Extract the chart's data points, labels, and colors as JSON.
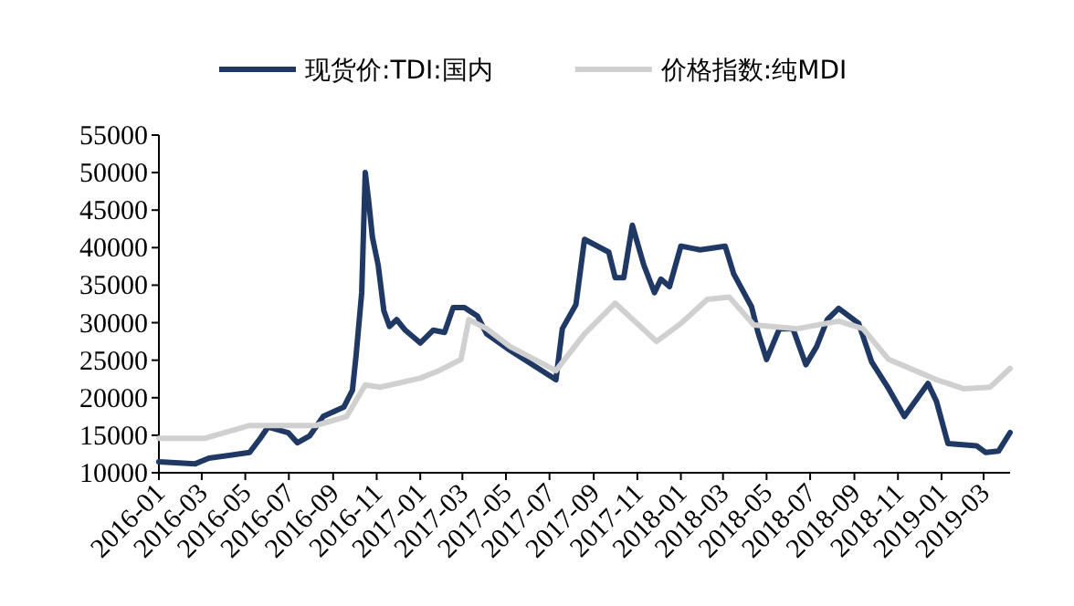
{
  "chart_data": {
    "type": "line",
    "legend": "top",
    "grid": false,
    "marker": "none",
    "line_style": "solid",
    "xlim": [
      "2016-01-01",
      "2019-04-07"
    ],
    "xticks": [
      "2016-01",
      "2016-03",
      "2016-05",
      "2016-07",
      "2016-09",
      "2016-11",
      "2017-01",
      "2017-03",
      "2017-05",
      "2017-07",
      "2017-09",
      "2017-11",
      "2018-01",
      "2018-03",
      "2018-05",
      "2018-07",
      "2018-09",
      "2018-11",
      "2019-01",
      "2019-03"
    ],
    "ylim": [
      10000,
      55000
    ],
    "yticks": [
      10000,
      15000,
      20000,
      25000,
      30000,
      35000,
      40000,
      45000,
      50000,
      55000
    ],
    "series": [
      {
        "name": "现货价:TDI:国内",
        "color": "#1f3864",
        "x": [
          "2016-01-01",
          "2016-02-21",
          "2016-03-11",
          "2016-05-07",
          "2016-05-22",
          "2016-06-02",
          "2016-06-30",
          "2016-07-13",
          "2016-07-30",
          "2016-08-18",
          "2016-09-16",
          "2016-09-28",
          "2016-10-03",
          "2016-10-11",
          "2016-10-16",
          "2016-10-21",
          "2016-10-26",
          "2016-11-03",
          "2016-11-11",
          "2016-11-19",
          "2016-11-29",
          "2016-12-11",
          "2017-01-01",
          "2017-01-19",
          "2017-02-04",
          "2017-02-16",
          "2017-03-04",
          "2017-03-22",
          "2017-04-04",
          "2017-05-07",
          "2017-07-10",
          "2017-07-19",
          "2017-08-07",
          "2017-08-19",
          "2017-09-22",
          "2017-10-01",
          "2017-10-13",
          "2017-10-25",
          "2017-11-10",
          "2017-11-25",
          "2017-12-04",
          "2017-12-16",
          "2018-01-01",
          "2018-01-28",
          "2018-03-04",
          "2018-03-16",
          "2018-04-10",
          "2018-04-19",
          "2018-05-01",
          "2018-05-19",
          "2018-06-07",
          "2018-06-25",
          "2018-07-10",
          "2018-07-25",
          "2018-08-10",
          "2018-09-07",
          "2018-09-25",
          "2018-10-19",
          "2018-11-10",
          "2018-12-13",
          "2018-12-25",
          "2019-01-10",
          "2019-02-19",
          "2019-03-04",
          "2019-03-22",
          "2019-04-07"
        ],
        "values": [
          11460,
          11200,
          11950,
          12700,
          14600,
          16100,
          15350,
          14000,
          14900,
          17500,
          18750,
          21000,
          25500,
          34000,
          50000,
          46000,
          41400,
          37700,
          31600,
          29500,
          30400,
          29000,
          27300,
          29000,
          28700,
          32000,
          32000,
          30900,
          28500,
          26300,
          22400,
          29200,
          32400,
          41100,
          39400,
          36000,
          36000,
          43000,
          37700,
          34000,
          35800,
          34800,
          40200,
          39700,
          40200,
          36500,
          32100,
          28700,
          25100,
          29200,
          29200,
          24400,
          26800,
          30400,
          31900,
          29900,
          24800,
          21200,
          17500,
          21900,
          19500,
          13900,
          13600,
          12700,
          12900,
          15350
        ]
      },
      {
        "name": "价格指数:纯MDI",
        "color": "#d0d0d0",
        "x": [
          "2016-01-01",
          "2016-03-06",
          "2016-05-07",
          "2016-08-08",
          "2016-09-20",
          "2016-10-16",
          "2016-11-06",
          "2017-01-01",
          "2017-01-27",
          "2017-02-27",
          "2017-03-10",
          "2017-04-04",
          "2017-05-07",
          "2017-07-10",
          "2017-08-19",
          "2017-10-01",
          "2017-11-28",
          "2018-01-01",
          "2018-02-07",
          "2018-03-10",
          "2018-04-13",
          "2018-06-13",
          "2018-08-10",
          "2018-09-13",
          "2018-10-19",
          "2018-12-25",
          "2019-02-01",
          "2019-03-10",
          "2019-04-07"
        ],
        "values": [
          14600,
          14600,
          16300,
          16300,
          17500,
          21700,
          21400,
          22600,
          23600,
          25100,
          30400,
          29200,
          26800,
          23600,
          28500,
          32600,
          27500,
          29900,
          33100,
          33400,
          29700,
          29200,
          30200,
          29200,
          25100,
          22400,
          21200,
          21400,
          23900
        ]
      }
    ]
  }
}
